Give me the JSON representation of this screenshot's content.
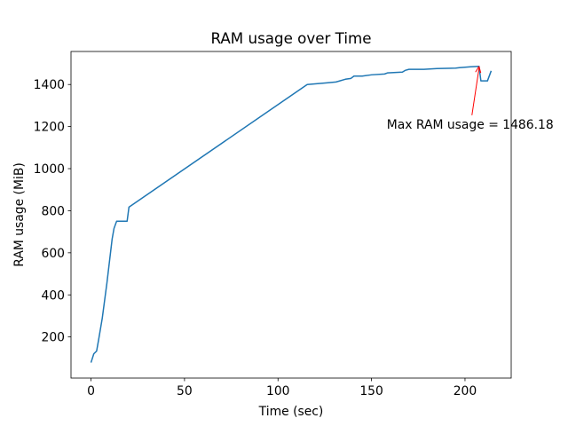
{
  "chart_data": {
    "type": "line",
    "title": "RAM usage over Time",
    "x_label": "Time (sec)",
    "y_label": "RAM usage (MiB)",
    "x": [
      0,
      1.5,
      3,
      4,
      6,
      8.5,
      11.3,
      12.3,
      13.7,
      19.3,
      20.3,
      115.6,
      126,
      131,
      136,
      139,
      140.6,
      145,
      150,
      157,
      158.5,
      166.5,
      168,
      170,
      178,
      185,
      195,
      197,
      203,
      207.5,
      208.5,
      212,
      214
    ],
    "series": [
      {
        "name": "RAM usage",
        "color": "#1f77b4",
        "values": [
          78,
          120,
          133,
          183,
          288,
          456,
          666,
          716,
          750,
          750,
          817,
          1400,
          1408,
          1412,
          1425,
          1429,
          1440,
          1440,
          1446,
          1450,
          1455,
          1459,
          1467,
          1472,
          1472,
          1476,
          1478,
          1480,
          1484,
          1486.18,
          1417,
          1417,
          1465
        ]
      }
    ],
    "xlim": [
      -10.7,
      224.7
    ],
    "ylim": [
      4.5,
      1557
    ],
    "xticks": [
      0,
      50,
      100,
      150,
      200
    ],
    "yticks": [
      200,
      400,
      600,
      800,
      1000,
      1200,
      1400
    ],
    "annotation": {
      "text": "Max RAM usage = 1486.18",
      "color": "red"
    }
  }
}
